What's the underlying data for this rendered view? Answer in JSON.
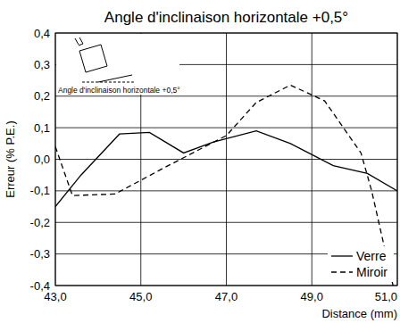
{
  "chart_data": {
    "type": "line",
    "title": "Angle d'inclinaison horizontale +0,5°",
    "x_label": "Distance (mm)",
    "y_label": "Erreur (% P.E.)",
    "annotations": [
      "Angle d'inclinaison horizontale +0,5°"
    ],
    "xlim": [
      43,
      51
    ],
    "xticks": [
      {
        "value": 43,
        "label": "43,0"
      },
      {
        "value": 45,
        "label": "45,0"
      },
      {
        "value": 47,
        "label": "47,0"
      },
      {
        "value": 49,
        "label": "49,0"
      },
      {
        "value": 51,
        "label": "51,0"
      }
    ],
    "ylim": [
      -0.4,
      0.4
    ],
    "yticks": [
      {
        "value": 0.4,
        "label": "0,4"
      },
      {
        "value": 0.3,
        "label": "0,3"
      },
      {
        "value": 0.2,
        "label": "0,2"
      },
      {
        "value": 0.1,
        "label": "0,1"
      },
      {
        "value": 0,
        "label": "0,0"
      },
      {
        "value": -0.1,
        "label": "-0,1"
      },
      {
        "value": -0.2,
        "label": "-0,2"
      },
      {
        "value": -0.3,
        "label": "-0,3"
      },
      {
        "value": -0.4,
        "label": "-0,4"
      }
    ],
    "grid": true,
    "legend": "bottom-right",
    "series": [
      {
        "name": "Verre",
        "color": "#000000",
        "line_style": "solid",
        "x": [
          43.0,
          43.6,
          44.5,
          45.2,
          46.0,
          46.7,
          47.7,
          48.5,
          49.5,
          50.3,
          51.0
        ],
        "values": [
          -0.15,
          -0.05,
          0.08,
          0.085,
          0.02,
          0.055,
          0.09,
          0.05,
          -0.02,
          -0.045,
          -0.1
        ]
      },
      {
        "name": "Miroir",
        "color": "#000000",
        "line_style": "dashed",
        "x": [
          43.0,
          43.4,
          44.4,
          45.5,
          46.5,
          47.0,
          47.7,
          48.5,
          49.3,
          50.15,
          50.4,
          50.9
        ],
        "values": [
          0.04,
          -0.115,
          -0.11,
          -0.03,
          0.04,
          0.075,
          0.18,
          0.235,
          0.185,
          0.02,
          -0.1,
          -0.4
        ]
      }
    ]
  }
}
